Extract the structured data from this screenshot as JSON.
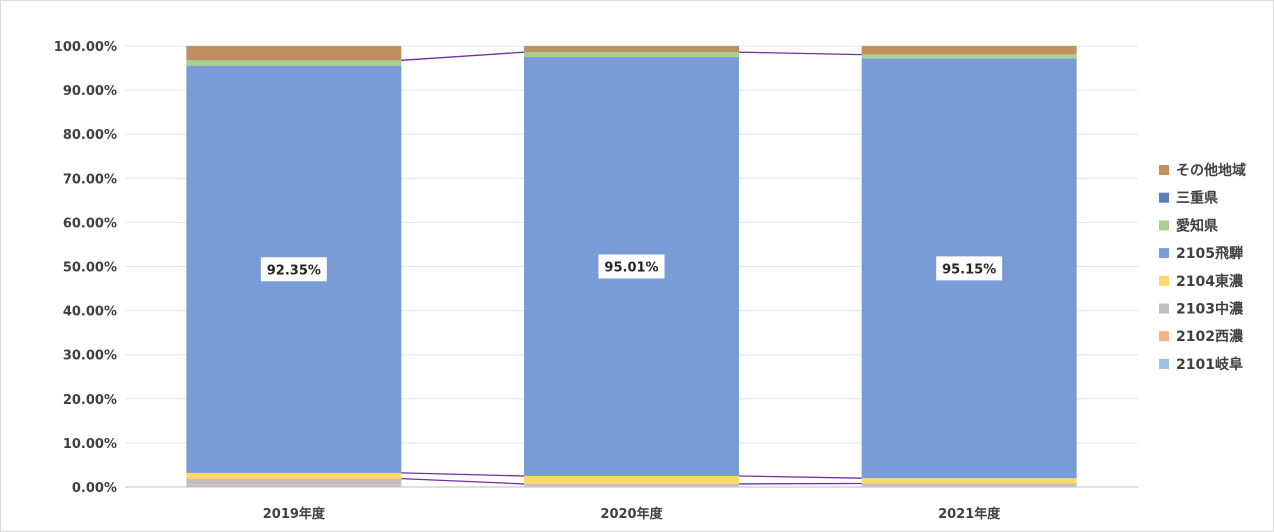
{
  "chart_data": {
    "type": "bar",
    "stacked": true,
    "percent": true,
    "categories": [
      "2019年度",
      "2020年度",
      "2021年度"
    ],
    "ylim": [
      0,
      100
    ],
    "yticks": [
      "0.00%",
      "10.00%",
      "20.00%",
      "30.00%",
      "40.00%",
      "50.00%",
      "60.00%",
      "70.00%",
      "80.00%",
      "90.00%",
      "100.00%"
    ],
    "grid": true,
    "legend_position": "right",
    "series_lines": true,
    "series": [
      {
        "name": "2101岐阜",
        "color": "#9dc3e6",
        "values": [
          0.3,
          0.2,
          0.2
        ]
      },
      {
        "name": "2102西濃",
        "color": "#f4b183",
        "values": [
          0.2,
          0.1,
          0.1
        ]
      },
      {
        "name": "2103中濃",
        "color": "#bfbfbf",
        "values": [
          1.4,
          0.4,
          0.5
        ]
      },
      {
        "name": "2104東濃",
        "color": "#ffd966",
        "values": [
          1.3,
          1.8,
          1.2
        ]
      },
      {
        "name": "2105飛騨",
        "color": "#7a9cd6",
        "values": [
          92.35,
          95.01,
          95.15
        ]
      },
      {
        "name": "愛知県",
        "color": "#a9d18e",
        "values": [
          1.2,
          1.1,
          0.9
        ]
      },
      {
        "name": "三重県",
        "color": "#5b80b8",
        "values": [
          0.05,
          0.03,
          0.05
        ]
      },
      {
        "name": "その他地域",
        "color": "#c09060",
        "values": [
          3.2,
          1.37,
          1.9
        ]
      }
    ],
    "data_labels": [
      {
        "series": "2105飛騨",
        "category": "2019年度",
        "text": "92.35%"
      },
      {
        "series": "2105飛騨",
        "category": "2020年度",
        "text": "95.01%"
      },
      {
        "series": "2105飛騨",
        "category": "2021年度",
        "text": "95.15%"
      }
    ]
  }
}
